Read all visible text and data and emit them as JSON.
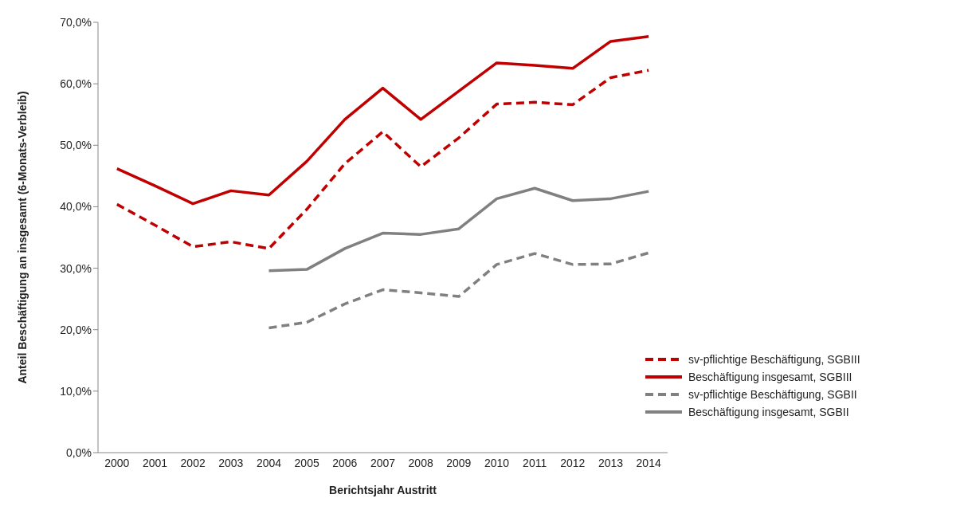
{
  "chart_data": {
    "type": "line",
    "xlabel": "Berichtsjahr Austritt",
    "ylabel": "Anteil Beschäftigung an insgesamt (6-Monats-Verbleib)",
    "categories": [
      "2000",
      "2001",
      "2002",
      "2003",
      "2004",
      "2005",
      "2006",
      "2007",
      "2008",
      "2009",
      "2010",
      "2011",
      "2012",
      "2013",
      "2014"
    ],
    "series": [
      {
        "name": "sv-pflichtige Beschäftigung, SGBIII",
        "color": "#c00000",
        "line_style": "dashed",
        "values": [
          40.4,
          37.0,
          33.5,
          34.3,
          33.2,
          39.6,
          47.0,
          52.2,
          46.5,
          51.2,
          56.7,
          57.0,
          56.6,
          61.0,
          62.2
        ]
      },
      {
        "name": "Beschäftigung insgesamt, SGBIII",
        "color": "#c00000",
        "line_style": "solid",
        "values": [
          46.2,
          43.4,
          40.5,
          42.6,
          41.9,
          47.4,
          54.2,
          59.3,
          54.2,
          58.8,
          63.4,
          63.0,
          62.5,
          66.9,
          67.7
        ]
      },
      {
        "name": "sv-pflichtige Beschäftigung, SGBII",
        "color": "#808080",
        "line_style": "dashed",
        "values": [
          null,
          null,
          null,
          null,
          20.3,
          21.2,
          24.2,
          26.5,
          26.0,
          25.4,
          30.6,
          32.4,
          30.6,
          30.7,
          32.5
        ]
      },
      {
        "name": "Beschäftigung insgesamt, SGBII",
        "color": "#808080",
        "line_style": "solid",
        "values": [
          null,
          null,
          null,
          null,
          29.6,
          29.8,
          33.2,
          35.7,
          35.5,
          36.4,
          41.3,
          43.0,
          41.0,
          41.3,
          42.5
        ]
      }
    ],
    "ylim": [
      0,
      70
    ],
    "yticks": [
      {
        "value": 0,
        "label": "0,0%"
      },
      {
        "value": 10,
        "label": "10,0%"
      },
      {
        "value": 20,
        "label": "20,0%"
      },
      {
        "value": 30,
        "label": "30,0%"
      },
      {
        "value": 40,
        "label": "40,0%"
      },
      {
        "value": 50,
        "label": "50,0%"
      },
      {
        "value": 60,
        "label": "60,0%"
      },
      {
        "value": 70,
        "label": "70,0%"
      }
    ],
    "grid": false,
    "legend": "bottom right",
    "marker": "none"
  }
}
